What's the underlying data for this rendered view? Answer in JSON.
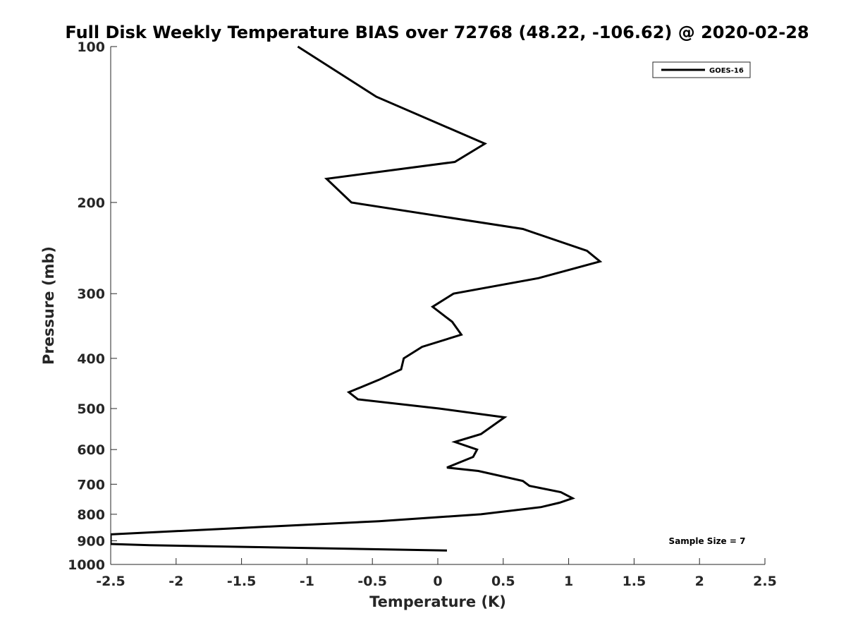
{
  "chart_data": {
    "type": "line",
    "title": "Full Disk Weekly Temperature BIAS over 72768 (48.22, -106.62) @ 2020-02-28",
    "xlabel": "Temperature (K)",
    "ylabel": "Pressure (mb)",
    "xlim": [
      -2.5,
      2.5
    ],
    "ylim": [
      1000,
      100
    ],
    "yscale": "log",
    "x_ticks": [
      -2.5,
      -2,
      -1.5,
      -1,
      -0.5,
      0,
      0.5,
      1,
      1.5,
      2,
      2.5
    ],
    "x_tick_labels": [
      "-2.5",
      "-2",
      "-1.5",
      "-1",
      "-0.5",
      "0",
      "0.5",
      "1",
      "1.5",
      "2",
      "2.5"
    ],
    "y_ticks": [
      100,
      200,
      300,
      400,
      500,
      600,
      700,
      800,
      900,
      1000
    ],
    "y_tick_labels": [
      "100",
      "200",
      "300",
      "400",
      "500",
      "600",
      "700",
      "800",
      "900",
      "1000"
    ],
    "grid": false,
    "legend_position": "top-right",
    "annotation": "Sample Size = 7",
    "series": [
      {
        "name": "GOES-16",
        "color": "#000000",
        "points": [
          {
            "x": -1.07,
            "p": 100
          },
          {
            "x": -0.47,
            "p": 125
          },
          {
            "x": 0.36,
            "p": 154
          },
          {
            "x": 0.13,
            "p": 167
          },
          {
            "x": -0.85,
            "p": 180
          },
          {
            "x": -0.66,
            "p": 200
          },
          {
            "x": 0.65,
            "p": 225
          },
          {
            "x": 1.14,
            "p": 248
          },
          {
            "x": 1.24,
            "p": 260
          },
          {
            "x": 0.77,
            "p": 280
          },
          {
            "x": 0.12,
            "p": 300
          },
          {
            "x": -0.04,
            "p": 318
          },
          {
            "x": 0.11,
            "p": 340
          },
          {
            "x": 0.18,
            "p": 360
          },
          {
            "x": -0.12,
            "p": 380
          },
          {
            "x": -0.26,
            "p": 400
          },
          {
            "x": -0.28,
            "p": 420
          },
          {
            "x": -0.45,
            "p": 440
          },
          {
            "x": -0.68,
            "p": 465
          },
          {
            "x": -0.61,
            "p": 480
          },
          {
            "x": 0.01,
            "p": 500
          },
          {
            "x": 0.51,
            "p": 520
          },
          {
            "x": 0.33,
            "p": 560
          },
          {
            "x": 0.13,
            "p": 580
          },
          {
            "x": 0.3,
            "p": 600
          },
          {
            "x": 0.27,
            "p": 620
          },
          {
            "x": 0.07,
            "p": 650
          },
          {
            "x": 0.31,
            "p": 660
          },
          {
            "x": 0.65,
            "p": 690
          },
          {
            "x": 0.7,
            "p": 705
          },
          {
            "x": 0.94,
            "p": 725
          },
          {
            "x": 1.03,
            "p": 745
          },
          {
            "x": 0.93,
            "p": 760
          },
          {
            "x": 0.79,
            "p": 775
          },
          {
            "x": 0.33,
            "p": 800
          },
          {
            "x": -0.45,
            "p": 825
          },
          {
            "x": -1.5,
            "p": 850
          },
          {
            "x": -2.5,
            "p": 875
          },
          {
            "x": -2.5,
            "p": 913
          },
          {
            "x": -2.2,
            "p": 918
          },
          {
            "x": 0.07,
            "p": 940
          }
        ]
      }
    ]
  }
}
